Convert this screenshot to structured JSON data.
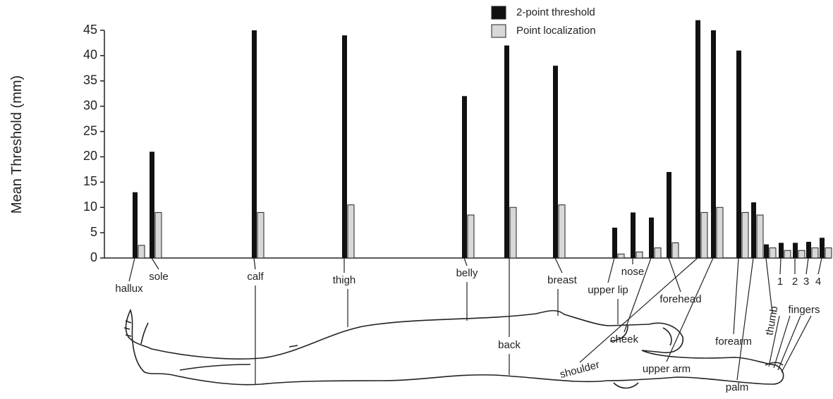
{
  "chart_data": {
    "type": "bar",
    "y_label": "Mean Threshold (mm)",
    "categories": [
      "hallux",
      "sole",
      "calf",
      "thigh",
      "belly",
      "back",
      "breast",
      "upper lip",
      "nose",
      "cheek",
      "forehead",
      "shoulder",
      "upper arm",
      "forearm",
      "palm",
      "thumb",
      "1",
      "2",
      "3",
      "4"
    ],
    "group_label": "fingers",
    "series": [
      {
        "name": "2-point threshold",
        "color": "#111111",
        "values": [
          13,
          21,
          45,
          44,
          32,
          42,
          38,
          6,
          9,
          8,
          17,
          47,
          45,
          41,
          11,
          2.7,
          3,
          3,
          3.2,
          4
        ]
      },
      {
        "name": "Point localization",
        "color": "#d8d8d8",
        "values": [
          2.5,
          9,
          9,
          10.5,
          8.5,
          10,
          10.5,
          0.8,
          1.2,
          2,
          3,
          9,
          10,
          9,
          8.5,
          2,
          1.5,
          1.5,
          2,
          2
        ]
      }
    ],
    "ylim": [
      0,
      45
    ],
    "yticks": [
      0,
      5,
      10,
      15,
      20,
      25,
      30,
      35,
      40,
      45
    ],
    "legend": "upper right",
    "grid": false
  }
}
